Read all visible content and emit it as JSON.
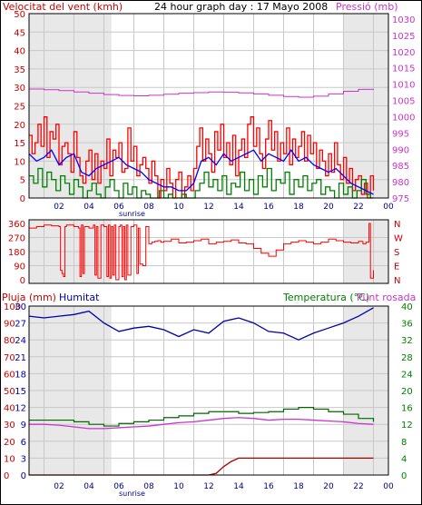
{
  "colors": {
    "wind": "#ff0000",
    "gust": "#ff0000",
    "avg": "#0000ff",
    "lowwind": "#008000",
    "pressure": "#cc33cc",
    "direction": "#ff0000",
    "humidity": "#0000aa",
    "temperature": "#006600",
    "dewpoint": "#cc33cc",
    "rain": "#aa0000",
    "grid": "#c8c8c8",
    "frame": "#000000",
    "daylight": "#ffffff",
    "night": "#e8e8e8",
    "green_label": "#008000",
    "blue_label": "#0000aa",
    "red_label": "#cc0000",
    "magenta_label": "#cc33cc"
  },
  "header": {
    "wind_label": "Velocitat del vent (kmh)",
    "date_label": "24 hour graph day : 17 Mayo 2008",
    "pressure_label": "Pressió (mb)",
    "rain_label": "Pluja (mm)",
    "humidity_label": "Humitat",
    "temperature_label": "Temperatura (°C)",
    "dewpoint_label": "Punt rosada",
    "sunrise_label": "sunrise"
  },
  "x_ticks": [
    "02",
    "04",
    "06",
    "08",
    "10",
    "12",
    "14",
    "16",
    "18",
    "20",
    "22",
    "00"
  ],
  "chart_data": [
    {
      "type": "line",
      "name": "wind-pressure",
      "x_range": [
        0,
        24
      ],
      "x_ticks": [
        "02",
        "04",
        "06",
        "08",
        "10",
        "12",
        "14",
        "16",
        "18",
        "20",
        "22",
        "00"
      ],
      "y_left_ticks": [
        "0",
        "5",
        "10",
        "15",
        "20",
        "25",
        "30",
        "35",
        "40",
        "45",
        "50"
      ],
      "ylim_left": [
        0,
        50
      ],
      "y_right_ticks": [
        "975",
        "980",
        "985",
        "990",
        "995",
        "1000",
        "1005",
        "1010",
        "1015",
        "1020",
        "1025",
        "1030"
      ],
      "ylim_right": [
        975,
        1030
      ],
      "series": [
        {
          "name": "Velocitat del vent (kmh)",
          "axis": "left",
          "x": [
            0.0,
            0.2,
            0.4,
            0.6,
            0.8,
            1.0,
            1.2,
            1.4,
            1.6,
            1.8,
            2.0,
            2.2,
            2.4,
            2.6,
            2.8,
            3.0,
            3.2,
            3.4,
            3.6,
            3.8,
            4.0,
            4.2,
            4.4,
            4.6,
            4.8,
            5.0,
            5.2,
            5.4,
            5.6,
            5.8,
            6.0,
            6.2,
            6.4,
            6.6,
            6.8,
            7.0,
            7.2,
            7.4,
            7.6,
            7.8,
            8.0,
            8.2,
            8.4,
            8.6,
            8.8,
            9.0,
            9.2,
            9.4,
            9.6,
            9.8,
            10.0,
            10.2,
            10.4,
            10.6,
            10.8,
            11.0,
            11.2,
            11.4,
            11.6,
            11.8,
            12.0,
            12.2,
            12.4,
            12.6,
            12.8,
            13.0,
            13.2,
            13.4,
            13.6,
            13.8,
            14.0,
            14.2,
            14.4,
            14.6,
            14.8,
            15.0,
            15.2,
            15.4,
            15.6,
            15.8,
            16.0,
            16.2,
            16.4,
            16.6,
            16.8,
            17.0,
            17.2,
            17.4,
            17.6,
            17.8,
            18.0,
            18.2,
            18.4,
            18.6,
            18.8,
            19.0,
            19.2,
            19.4,
            19.6,
            19.8,
            20.0,
            20.2,
            20.4,
            20.6,
            20.8,
            21.0,
            21.2,
            21.4,
            21.6,
            21.8,
            22.0,
            22.2,
            22.4,
            22.6,
            22.8,
            23.0
          ],
          "y": [
            17,
            12,
            15,
            20,
            14,
            22,
            11,
            18,
            16,
            20,
            9,
            14,
            15,
            12,
            7,
            18,
            11,
            6,
            4,
            10,
            13,
            5,
            12,
            4,
            10,
            8,
            16,
            6,
            13,
            11,
            15,
            7,
            8,
            19,
            10,
            14,
            6,
            9,
            11,
            8,
            4,
            10,
            6,
            0,
            5,
            2,
            8,
            4,
            0,
            5,
            7,
            0,
            3,
            6,
            2,
            8,
            14,
            19,
            10,
            16,
            12,
            7,
            18,
            13,
            20,
            11,
            15,
            9,
            17,
            6,
            13,
            16,
            11,
            20,
            22,
            14,
            19,
            12,
            8,
            16,
            21,
            13,
            18,
            10,
            15,
            12,
            19,
            9,
            16,
            11,
            14,
            18,
            10,
            17,
            12,
            15,
            8,
            13,
            10,
            6,
            12,
            7,
            15,
            9,
            5,
            11,
            4,
            8,
            2,
            5,
            6,
            1,
            4,
            0,
            6,
            2
          ]
        },
        {
          "name": "Velocitat mitjana (kmh)",
          "axis": "left",
          "x": [
            0.0,
            0.5,
            1.0,
            1.5,
            2.0,
            2.5,
            3.0,
            3.5,
            4.0,
            4.5,
            5.0,
            5.5,
            6.0,
            6.5,
            7.0,
            7.5,
            8.0,
            8.5,
            9.0,
            9.5,
            10.0,
            10.5,
            11.0,
            11.5,
            12.0,
            12.5,
            13.0,
            13.5,
            14.0,
            14.5,
            15.0,
            15.5,
            16.0,
            16.5,
            17.0,
            17.5,
            18.0,
            18.5,
            19.0,
            19.5,
            20.0,
            20.5,
            21.0,
            21.5,
            22.0,
            22.5,
            23.0
          ],
          "y": [
            12,
            10,
            11,
            13,
            9,
            11,
            12,
            7,
            6,
            8,
            9,
            10,
            11,
            9,
            8,
            7,
            5,
            4,
            3,
            3,
            2,
            2,
            4,
            10,
            11,
            9,
            12,
            10,
            11,
            12,
            13,
            10,
            12,
            11,
            10,
            13,
            10,
            11,
            9,
            8,
            7,
            8,
            6,
            4,
            3,
            2,
            1
          ]
        },
        {
          "name": "Vent mínim (kmh)",
          "axis": "left",
          "x": [
            0.0,
            0.3,
            0.6,
            0.9,
            1.2,
            1.5,
            1.8,
            2.1,
            2.4,
            2.7,
            3.0,
            3.3,
            3.6,
            3.9,
            4.2,
            4.5,
            4.8,
            5.1,
            5.4,
            5.7,
            6.0,
            6.3,
            6.6,
            6.9,
            7.2,
            7.5,
            7.8,
            8.1,
            8.4,
            8.7,
            9.0,
            9.3,
            9.6,
            9.9,
            10.2,
            10.5,
            10.8,
            11.1,
            11.4,
            11.7,
            12.0,
            12.3,
            12.6,
            12.9,
            13.2,
            13.5,
            13.8,
            14.1,
            14.4,
            14.7,
            15.0,
            15.3,
            15.6,
            15.9,
            16.2,
            16.5,
            16.8,
            17.1,
            17.4,
            17.7,
            18.0,
            18.3,
            18.6,
            18.9,
            19.2,
            19.5,
            19.8,
            20.1,
            20.4,
            20.7,
            21.0,
            21.3,
            21.6,
            21.9,
            22.2,
            22.5,
            22.8,
            23.0
          ],
          "y": [
            6,
            4,
            8,
            3,
            7,
            5,
            2,
            6,
            4,
            1,
            5,
            3,
            0,
            2,
            4,
            1,
            0,
            3,
            5,
            2,
            0,
            4,
            1,
            3,
            0,
            2,
            1,
            0,
            0,
            2,
            0,
            1,
            0,
            0,
            1,
            0,
            0,
            2,
            4,
            7,
            3,
            5,
            2,
            6,
            1,
            4,
            3,
            7,
            2,
            5,
            1,
            6,
            3,
            8,
            2,
            5,
            4,
            7,
            1,
            5,
            3,
            6,
            2,
            4,
            5,
            1,
            3,
            2,
            0,
            4,
            1,
            3,
            0,
            2,
            5,
            1,
            0,
            0
          ]
        },
        {
          "name": "Pressió (mb)",
          "axis": "right",
          "x": [
            0,
            1,
            2,
            3,
            4,
            5,
            6,
            7,
            8,
            9,
            10,
            11,
            12,
            13,
            14,
            15,
            16,
            17,
            18,
            19,
            20,
            21,
            22,
            23
          ],
          "y": [
            1008.5,
            1008.3,
            1008.0,
            1007.6,
            1007.2,
            1006.8,
            1006.5,
            1006.4,
            1006.6,
            1006.9,
            1007.2,
            1007.4,
            1007.6,
            1007.5,
            1007.3,
            1007.0,
            1006.6,
            1006.2,
            1006.0,
            1006.3,
            1007.0,
            1007.8,
            1008.4,
            1008.6
          ]
        }
      ]
    },
    {
      "type": "line",
      "name": "wind-direction",
      "x_range": [
        0,
        24
      ],
      "y_left_ticks": [
        "0",
        "90",
        "180",
        "270",
        "360"
      ],
      "ylim_left": [
        0,
        360
      ],
      "y_right_ticks": [
        "N",
        "E",
        "S",
        "W",
        "N"
      ],
      "series": [
        {
          "name": "Direcció del vent",
          "x": [
            0.0,
            0.5,
            1.0,
            1.5,
            2.0,
            2.1,
            2.2,
            2.3,
            2.4,
            2.5,
            3.0,
            3.3,
            3.4,
            3.5,
            3.6,
            3.7,
            4.0,
            4.3,
            4.4,
            4.5,
            4.6,
            4.8,
            5.0,
            5.2,
            5.3,
            5.4,
            5.5,
            5.6,
            5.7,
            5.8,
            6.0,
            6.1,
            6.2,
            6.3,
            6.4,
            6.5,
            6.6,
            6.8,
            7.0,
            7.2,
            7.3,
            7.4,
            7.6,
            7.8,
            8.0,
            8.2,
            8.4,
            8.6,
            8.8,
            9.0,
            9.5,
            10.0,
            10.5,
            11.0,
            11.5,
            12.0,
            12.5,
            13.0,
            13.5,
            14.0,
            14.5,
            15.0,
            15.5,
            16.0,
            16.5,
            17.0,
            17.5,
            18.0,
            18.5,
            19.0,
            19.5,
            20.0,
            20.5,
            21.0,
            21.5,
            22.0,
            22.3,
            22.5,
            22.7,
            22.8,
            23.0
          ],
          "y": [
            330,
            340,
            350,
            345,
            340,
            60,
            40,
            20,
            340,
            350,
            340,
            330,
            20,
            350,
            40,
            340,
            330,
            350,
            30,
            340,
            10,
            350,
            340,
            20,
            350,
            10,
            340,
            30,
            350,
            0,
            340,
            350,
            20,
            340,
            0,
            350,
            30,
            340,
            350,
            40,
            330,
            100,
            90,
            340,
            230,
            240,
            245,
            250,
            240,
            245,
            260,
            235,
            240,
            250,
            260,
            230,
            240,
            245,
            255,
            235,
            230,
            200,
            170,
            150,
            190,
            230,
            240,
            250,
            240,
            230,
            240,
            260,
            250,
            240,
            235,
            245,
            230,
            240,
            360,
            10,
            60
          ]
        }
      ]
    },
    {
      "type": "line",
      "name": "rain-humidity-temperature",
      "x_range": [
        0,
        24
      ],
      "y_left_rain_ticks": [
        "0",
        "10",
        "20",
        "30",
        "40",
        "50",
        "60",
        "70",
        "80",
        "90",
        "100"
      ],
      "ylim_left_rain": [
        0,
        100
      ],
      "y_left_humidity_ticks": [
        "0",
        "3",
        "6",
        "9",
        "12",
        "15",
        "18",
        "21",
        "24",
        "27",
        "30"
      ],
      "ylim_left_humidity": [
        0,
        30
      ],
      "y_right_ticks": [
        "0",
        "4",
        "8",
        "12",
        "16",
        "20",
        "24",
        "28",
        "32",
        "36",
        "40"
      ],
      "ylim_right": [
        0,
        40
      ],
      "series": [
        {
          "name": "Humitat",
          "axis": "left",
          "x": [
            0,
            1,
            2,
            3,
            4,
            5,
            6,
            7,
            8,
            9,
            10,
            11,
            12,
            13,
            14,
            15,
            16,
            17,
            18,
            19,
            20,
            21,
            22,
            23
          ],
          "y": [
            94,
            93,
            94,
            95,
            97,
            90,
            85,
            87,
            88,
            86,
            82,
            86,
            84,
            91,
            93,
            90,
            85,
            84,
            80,
            84,
            87,
            90,
            94,
            99
          ]
        },
        {
          "name": "Temperatura (°C)",
          "axis": "right",
          "x": [
            0,
            1,
            2,
            3,
            4,
            5,
            6,
            7,
            8,
            9,
            10,
            11,
            12,
            13,
            14,
            15,
            16,
            17,
            18,
            19,
            20,
            21,
            22,
            23
          ],
          "y": [
            13.0,
            13.0,
            13.0,
            12.6,
            12.0,
            11.6,
            12.2,
            12.6,
            13.0,
            13.6,
            14.0,
            14.6,
            15.0,
            15.0,
            14.6,
            14.8,
            15.0,
            15.6,
            16.0,
            15.6,
            15.0,
            14.4,
            13.4,
            12.6
          ]
        },
        {
          "name": "Punt rosada",
          "axis": "right",
          "x": [
            0,
            1,
            2,
            3,
            4,
            5,
            6,
            7,
            8,
            9,
            10,
            11,
            12,
            13,
            14,
            15,
            16,
            17,
            18,
            19,
            20,
            21,
            22,
            23
          ],
          "y": [
            12.0,
            12.0,
            11.8,
            11.4,
            11.0,
            11.0,
            11.2,
            11.4,
            11.6,
            12.0,
            12.4,
            12.6,
            13.0,
            13.4,
            13.6,
            13.4,
            13.0,
            13.2,
            13.2,
            13.0,
            12.8,
            12.6,
            12.2,
            12.0
          ]
        },
        {
          "name": "Pluja (mm)",
          "axis": "left",
          "x": [
            0,
            10.5,
            11.0,
            11.5,
            12.0,
            12.5,
            13.0,
            13.5,
            14.0,
            23.0
          ],
          "y": [
            0,
            0,
            0,
            0,
            0,
            1,
            5,
            8,
            10,
            10
          ]
        }
      ]
    }
  ]
}
